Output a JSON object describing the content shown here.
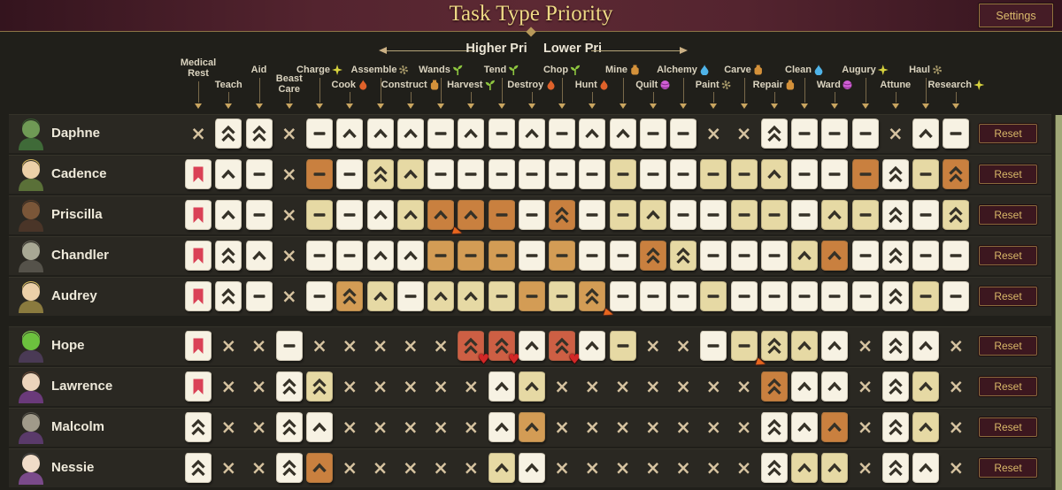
{
  "title_bar": {
    "title": "Task Type Priority",
    "settings_label": "Settings"
  },
  "legend": {
    "higher": "Higher Pri",
    "lower": "Lower Pri"
  },
  "reset_label": "Reset",
  "columns": [
    {
      "label": "Medical Rest",
      "icon": null,
      "wrap": true
    },
    {
      "label": "Teach",
      "icon": null
    },
    {
      "label": "Aid",
      "icon": null
    },
    {
      "label": "Beast Care",
      "icon": null,
      "wrap": true
    },
    {
      "label": "Charge",
      "icon": "sparkle"
    },
    {
      "label": "Cook",
      "icon": "fire"
    },
    {
      "label": "Assemble",
      "icon": "gear"
    },
    {
      "label": "Construct",
      "icon": "vessel"
    },
    {
      "label": "Wands",
      "icon": "sprout"
    },
    {
      "label": "Harvest",
      "icon": "sprout"
    },
    {
      "label": "Tend",
      "icon": "sprout"
    },
    {
      "label": "Destroy",
      "icon": "fire"
    },
    {
      "label": "Chop",
      "icon": "sprout"
    },
    {
      "label": "Hunt",
      "icon": "fire"
    },
    {
      "label": "Mine",
      "icon": "vessel"
    },
    {
      "label": "Quilt",
      "icon": "yarn"
    },
    {
      "label": "Alchemy",
      "icon": "drop"
    },
    {
      "label": "Paint",
      "icon": "gear"
    },
    {
      "label": "Carve",
      "icon": "vessel"
    },
    {
      "label": "Repair",
      "icon": "vessel"
    },
    {
      "label": "Clean",
      "icon": "drop"
    },
    {
      "label": "Ward",
      "icon": "yarn"
    },
    {
      "label": "Augury",
      "icon": "sparkle"
    },
    {
      "label": "Attune",
      "icon": null
    },
    {
      "label": "Haul",
      "icon": "gear"
    },
    {
      "label": "Research",
      "icon": "sparkle"
    }
  ],
  "icon_colors": {
    "sparkle": "#d6d23e",
    "fire": "#e0622a",
    "gear": "#a89a6a",
    "vessel": "#d4913a",
    "sprout": "#8ec63f",
    "drop": "#4fb3e8",
    "yarn": "#cf5fd4"
  },
  "cell_codes": {
    "x": "disabled",
    "0": "normal-minus",
    "1": "raised-chevron",
    "2": "highest-double-chevron",
    "f": "flagged-bookmark",
    "h": "heart-marker",
    "p": "pointer-marker"
  },
  "cell_colors": {
    "w": "#f7f2e3",
    "t": "#e6d9a4",
    "a": "#d39c55",
    "o": "#c9803f",
    "r": "#cd5f44"
  },
  "flag_color": "#da4156",
  "rows": [
    {
      "name": "Daphne",
      "avatar": {
        "desc": "green-hooded-figure",
        "body": "#3f6a38",
        "head": "#6f9a55",
        "top": "#35592e"
      },
      "cells": [
        "x",
        "2w",
        "2w",
        "x",
        "0w",
        "1w",
        "1w",
        "1w",
        "0w",
        "1w",
        "0w",
        "1w",
        "0w",
        "1w",
        "1w",
        "0w",
        "0w",
        "x",
        "x",
        "2w",
        "0w",
        "0w",
        "0w",
        "x",
        "1w",
        "0w"
      ]
    },
    {
      "name": "Cadence",
      "avatar": {
        "desc": "blonde-girl-glasses",
        "body": "#5a7038",
        "head": "#ecd0a8",
        "top": "#d2b45e"
      },
      "cells": [
        "fw",
        "1w",
        "0w",
        "x",
        "0o",
        "0w",
        "2t",
        "1t",
        "0w",
        "0w",
        "0w",
        "0w",
        "0w",
        "0w",
        "0t",
        "0w",
        "0w",
        "0t",
        "0t",
        "1t",
        "0w",
        "0w",
        "0o",
        "2w",
        "0t",
        "2o"
      ]
    },
    {
      "name": "Priscilla",
      "avatar": {
        "desc": "brown-beast",
        "body": "#4a3528",
        "head": "#7a5638",
        "top": "#5a3d28"
      },
      "cells": [
        "fw",
        "1w",
        "0w",
        "x",
        "0t",
        "0w",
        "1w",
        "1t",
        "1op",
        "1o",
        "0o",
        "0w",
        "2o",
        "0w",
        "0t",
        "1t",
        "0w",
        "0w",
        "0t",
        "0t",
        "0w",
        "1t",
        "0t",
        "2w",
        "0w",
        "2t"
      ]
    },
    {
      "name": "Chandler",
      "avatar": {
        "desc": "gray-flat-head-man",
        "body": "#55524a",
        "head": "#a8a894",
        "top": "#6a685c"
      },
      "cells": [
        "fw",
        "2w",
        "1w",
        "x",
        "0w",
        "0w",
        "1w",
        "1w",
        "0a",
        "0a",
        "0a",
        "0w",
        "0a",
        "0w",
        "0w",
        "2o",
        "2t",
        "0w",
        "0w",
        "0w",
        "1t",
        "1o",
        "0w",
        "2w",
        "0w",
        "0w"
      ]
    },
    {
      "name": "Audrey",
      "avatar": {
        "desc": "blonde-bun-woman",
        "body": "#8a7a3e",
        "head": "#ecd0a8",
        "top": "#d8bc62"
      },
      "cells": [
        "fw",
        "2w",
        "0w",
        "x",
        "0w",
        "2a",
        "1t",
        "0w",
        "1t",
        "1t",
        "0t",
        "0a",
        "0t",
        "2ap",
        "0w",
        "0w",
        "0w",
        "0t",
        "0w",
        "0w",
        "0w",
        "0w",
        "0w",
        "2w",
        "0t",
        "0w"
      ]
    },
    {
      "name": "Hope",
      "avatar": {
        "desc": "green-crystal-creature",
        "body": "#4a3a55",
        "head": "#6cc13e",
        "top": "#8ad655"
      },
      "section_start": true,
      "cells": [
        "fw",
        "x",
        "x",
        "0w",
        "x",
        "x",
        "x",
        "x",
        "x",
        "2rh",
        "2rh",
        "1w",
        "2rh",
        "1w",
        "0t",
        "x",
        "x",
        "0w",
        "0tp",
        "2t",
        "1t",
        "1w",
        "x",
        "2w",
        "1w",
        "x"
      ]
    },
    {
      "name": "Lawrence",
      "avatar": {
        "desc": "pale-man-purple-coat",
        "body": "#6a3a7a",
        "head": "#ecd4bc",
        "top": "#6a4a38"
      },
      "cells": [
        "fw",
        "x",
        "x",
        "2w",
        "2t",
        "x",
        "x",
        "x",
        "x",
        "x",
        "1w",
        "1t",
        "x",
        "x",
        "x",
        "x",
        "x",
        "x",
        "x",
        "2o",
        "1w",
        "1w",
        "x",
        "2w",
        "1t",
        "x"
      ]
    },
    {
      "name": "Malcolm",
      "avatar": {
        "desc": "stone-faced-crowned-figure",
        "body": "#5a3a6a",
        "head": "#a09a8a",
        "top": "#55524a"
      },
      "cells": [
        "2w",
        "x",
        "x",
        "2w",
        "1w",
        "x",
        "x",
        "x",
        "x",
        "x",
        "1w",
        "1a",
        "x",
        "x",
        "x",
        "x",
        "x",
        "x",
        "x",
        "2w",
        "1w",
        "1o",
        "x",
        "2w",
        "1t",
        "x"
      ]
    },
    {
      "name": "Nessie",
      "avatar": {
        "desc": "pale-child-dark-hat",
        "body": "#7a4a8a",
        "head": "#f0dcc8",
        "top": "#484848"
      },
      "cells": [
        "2w",
        "x",
        "x",
        "2w",
        "1o",
        "x",
        "x",
        "x",
        "x",
        "x",
        "1t",
        "1w",
        "x",
        "x",
        "x",
        "x",
        "x",
        "x",
        "x",
        "2w",
        "1t",
        "1t",
        "x",
        "2w",
        "1w",
        "x"
      ]
    }
  ]
}
